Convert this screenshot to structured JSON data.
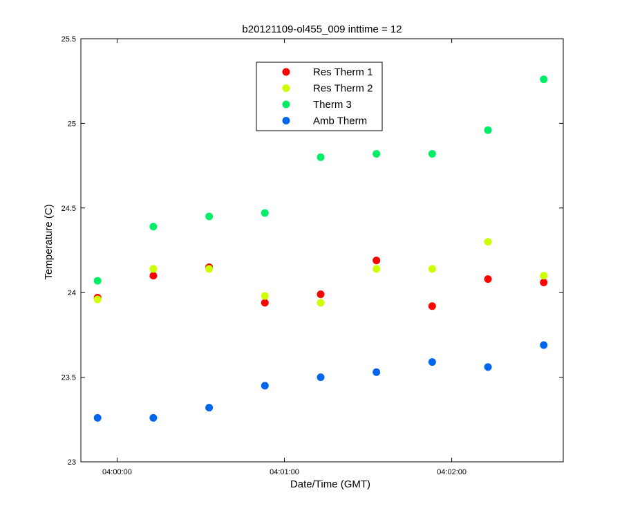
{
  "chart_data": {
    "type": "scatter",
    "title": "b20121109-ol455_009 inttime = 12",
    "xlabel": "Date/Time (GMT)",
    "ylabel": "Temperature (C)",
    "x_ticks": [
      "04:00:00",
      "04:01:00",
      "04:02:00"
    ],
    "y_ticks": [
      "23",
      "23.5",
      "24",
      "24.5",
      "25",
      "25.5"
    ],
    "xlim": [
      "03:59:47",
      "04:02:40"
    ],
    "ylim": [
      23,
      25.5
    ],
    "grid": false,
    "legend_position": "top-center",
    "x": [
      "03:59:53",
      "04:00:13",
      "04:00:33",
      "04:00:53",
      "04:01:13",
      "04:01:33",
      "04:01:53",
      "04:02:13",
      "04:02:33"
    ],
    "series": [
      {
        "name": "Res Therm 1",
        "color": "#ff0000",
        "values": [
          23.97,
          24.1,
          24.15,
          23.94,
          23.99,
          24.19,
          23.92,
          24.08,
          24.06
        ]
      },
      {
        "name": "Res Therm 2",
        "color": "#ccff00",
        "values": [
          23.96,
          24.14,
          24.14,
          23.98,
          23.94,
          24.14,
          24.14,
          24.3,
          24.1
        ]
      },
      {
        "name": "Therm 3",
        "color": "#00ee66",
        "values": [
          24.07,
          24.39,
          24.45,
          24.47,
          24.8,
          24.82,
          24.82,
          24.96,
          25.26
        ]
      },
      {
        "name": "Amb Therm",
        "color": "#0066ee",
        "values": [
          23.26,
          23.26,
          23.32,
          23.45,
          23.5,
          23.53,
          23.59,
          23.56,
          23.69
        ]
      }
    ]
  }
}
